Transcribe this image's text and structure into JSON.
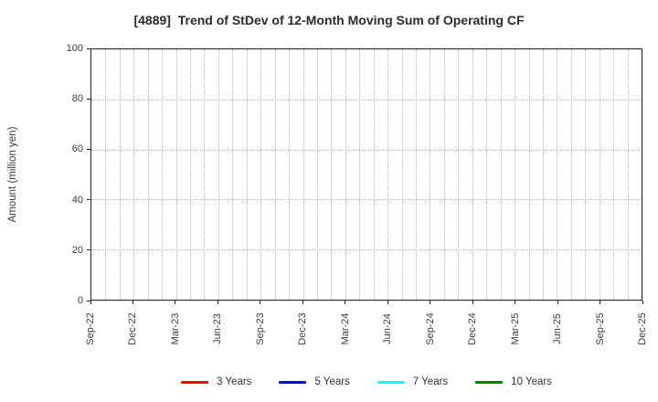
{
  "chart": {
    "title": "[4889]  Trend of StDev of 12-Month Moving Sum of Operating CF",
    "ylabel": "Amount (million yen)"
  },
  "chart_data": {
    "type": "line",
    "title": "[4889]  Trend of StDev of 12-Month Moving Sum of Operating CF",
    "xlabel": "",
    "ylabel": "Amount (million yen)",
    "ylim": [
      0,
      100
    ],
    "yticks": [
      0,
      20,
      40,
      60,
      80,
      100
    ],
    "x_axis": {
      "unit": "month",
      "start": "Sep-22",
      "end": "Dec-25",
      "n_points": 40,
      "tick_every_months": 3,
      "tick_labels": [
        "Sep-22",
        "Dec-22",
        "Mar-23",
        "Jun-23",
        "Sep-23",
        "Dec-23",
        "Mar-24",
        "Jun-24",
        "Sep-24",
        "Dec-24",
        "Mar-25",
        "Jun-25",
        "Sep-25",
        "Dec-25"
      ],
      "tick_label_rotation_deg": 90
    },
    "grid": {
      "on": true,
      "style": "dotted",
      "color": "#b4b4b4",
      "vertical": "every month",
      "horizontal": "at each ytick"
    },
    "legend": {
      "position": "bottom-center",
      "entries": [
        "3 Years",
        "5 Years",
        "7 Years",
        "10 Years"
      ]
    },
    "series": [
      {
        "name": "3 Years",
        "color": "#ff0000",
        "values": []
      },
      {
        "name": "5 Years",
        "color": "#0000ff",
        "values": []
      },
      {
        "name": "7 Years",
        "color": "#00ffff",
        "values": []
      },
      {
        "name": "10 Years",
        "color": "#008000",
        "values": []
      }
    ],
    "note": "Axes are rendered but no data lines are plotted (all series empty)."
  }
}
